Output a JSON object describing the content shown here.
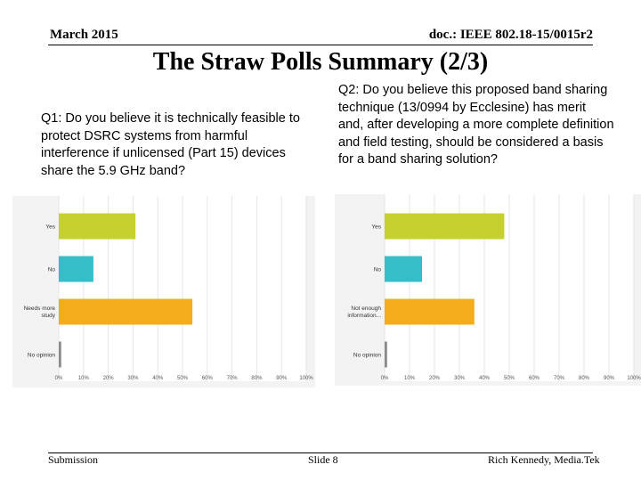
{
  "header": {
    "date": "March 2015",
    "doc_id": "doc.: IEEE 802.18-15/0015r2"
  },
  "title": "The Straw Polls Summary (2/3)",
  "questions": {
    "q1": "Q1: Do you believe it is technically feasible to protect DSRC systems from harmful interference if unlicensed (Part 15) devices share the 5.9 GHz band?",
    "q2": "Q2: Do you believe this proposed band sharing technique (13/0994 by Ecclesine) has merit and, after developing a more complete definition and field testing, should be considered a basis for a band sharing solution?"
  },
  "chart_data": [
    {
      "type": "bar",
      "orientation": "horizontal",
      "categories": [
        "Yes",
        "No",
        "Needs more study",
        "No opinion"
      ],
      "values": [
        31,
        14,
        54,
        1
      ],
      "colors": [
        "#c5d12f",
        "#35bec8",
        "#f3ac1c",
        "#8b8b8b"
      ],
      "xlim": [
        0,
        100
      ],
      "ticks": [
        "0%",
        "10%",
        "20%",
        "30%",
        "40%",
        "50%",
        "60%",
        "70%",
        "80%",
        "90%",
        "100%"
      ]
    },
    {
      "type": "bar",
      "orientation": "horizontal",
      "categories": [
        "Yes",
        "No",
        "Not enough information...",
        "No opinion"
      ],
      "values": [
        48,
        15,
        36,
        1
      ],
      "colors": [
        "#c5d12f",
        "#35bec8",
        "#f3ac1c",
        "#8b8b8b"
      ],
      "xlim": [
        0,
        100
      ],
      "ticks": [
        "0%",
        "10%",
        "20%",
        "30%",
        "40%",
        "50%",
        "60%",
        "70%",
        "80%",
        "90%",
        "100%"
      ]
    }
  ],
  "footer": {
    "left": "Submission",
    "center": "Slide 8",
    "right": "Rich Kennedy, Media.Tek"
  }
}
